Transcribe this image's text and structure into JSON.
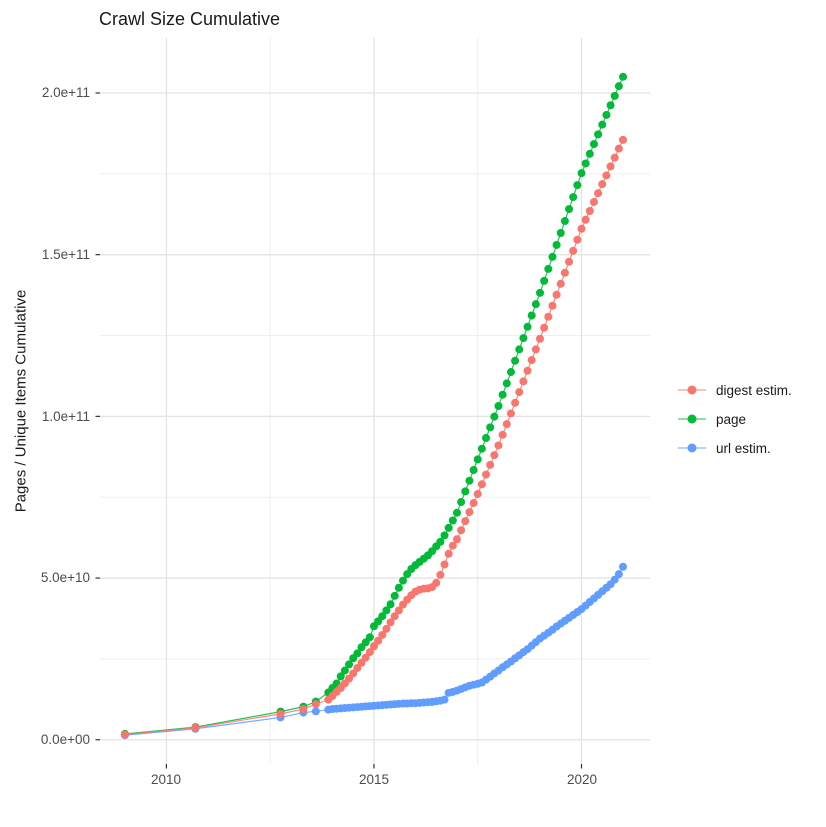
{
  "chart_data": {
    "type": "line",
    "title": "Crawl Size Cumulative",
    "ylabel": "Pages / Unique Items Cumulative",
    "xlabel": "",
    "grid": true,
    "legend_position": "right",
    "xlim": [
      2008.4,
      2021.65
    ],
    "ylim": [
      -7500000000.0,
      217000000000.0
    ],
    "x_ticks": {
      "values": [
        2010,
        2015,
        2020
      ],
      "labels": [
        "2010",
        "2015",
        "2020"
      ]
    },
    "x_minor_ticks": [
      2012.5,
      2017.5
    ],
    "y_ticks": {
      "values": [
        0,
        50000000000.0,
        100000000000.0,
        150000000000.0,
        200000000000.0
      ],
      "labels": [
        "0.0e+00",
        "5.0e+10",
        "1.0e+11",
        "1.5e+11",
        "2.0e+11"
      ]
    },
    "y_minor_ticks": [
      25000000000.0,
      75000000000.0,
      125000000000.0,
      175000000000.0
    ],
    "x": [
      2009.0,
      2010.7,
      2012.75,
      2013.3,
      2013.6,
      2013.9,
      2014.0,
      2014.1,
      2014.2,
      2014.3,
      2014.4,
      2014.5,
      2014.6,
      2014.7,
      2014.8,
      2014.9,
      2015.0,
      2015.1,
      2015.2,
      2015.3,
      2015.4,
      2015.5,
      2015.6,
      2015.7,
      2015.8,
      2015.9,
      2016.0,
      2016.1,
      2016.2,
      2016.3,
      2016.4,
      2016.5,
      2016.6,
      2016.7,
      2016.8,
      2016.9,
      2017.0,
      2017.1,
      2017.2,
      2017.3,
      2017.4,
      2017.5,
      2017.6,
      2017.7,
      2017.8,
      2017.9,
      2018.0,
      2018.1,
      2018.2,
      2018.3,
      2018.4,
      2018.5,
      2018.6,
      2018.7,
      2018.8,
      2018.9,
      2019.0,
      2019.1,
      2019.2,
      2019.3,
      2019.4,
      2019.5,
      2019.6,
      2019.7,
      2019.8,
      2019.9,
      2020.0,
      2020.1,
      2020.2,
      2020.3,
      2020.4,
      2020.5,
      2020.6,
      2020.7,
      2020.8,
      2020.9,
      2021.0
    ],
    "series": [
      {
        "name": "digest estim.",
        "color": "#F8766D",
        "y": [
          1600000000.0,
          3700000000.0,
          8000000000.0,
          9500000000.0,
          11000000000.0,
          12400000000.0,
          13500000000.0,
          14800000000.0,
          16000000000.0,
          17400000000.0,
          18900000000.0,
          20500000000.0,
          22200000000.0,
          23800000000.0,
          25400000000.0,
          27100000000.0,
          28900000000.0,
          30600000000.0,
          32400000000.0,
          34300000000.0,
          36300000000.0,
          38200000000.0,
          40000000000.0,
          41800000000.0,
          43300000000.0,
          44700000000.0,
          45800000000.0,
          46400000000.0,
          46700000000.0,
          46800000000.0,
          47200000000.0,
          48500000000.0,
          51000000000.0,
          54200000000.0,
          57500000000.0,
          60000000000.0,
          62000000000.0,
          64800000000.0,
          67600000000.0,
          70400000000.0,
          73200000000.0,
          76000000000.0,
          79000000000.0,
          82000000000.0,
          85000000000.0,
          88000000000.0,
          91000000000.0,
          94300000000.0,
          97600000000.0,
          100900000000.0,
          104200000000.0,
          107500000000.0,
          110800000000.0,
          114100000000.0,
          117400000000.0,
          120700000000.0,
          124000000000.0,
          127400000000.0,
          130800000000.0,
          134200000000.0,
          137600000000.0,
          141000000000.0,
          144400000000.0,
          147800000000.0,
          151200000000.0,
          154600000000.0,
          158000000000.0,
          160800000000.0,
          163500000000.0,
          166300000000.0,
          169000000000.0,
          171800000000.0,
          174500000000.0,
          177300000000.0,
          180000000000.0,
          182800000000.0,
          185500000000.0
        ]
      },
      {
        "name": "page",
        "color": "#00BA38",
        "y": [
          1800000000.0,
          3900000000.0,
          8700000000.0,
          10200000000.0,
          11800000000.0,
          14600000000.0,
          16000000000.0,
          17400000000.0,
          19600000000.0,
          21400000000.0,
          23300000000.0,
          25200000000.0,
          26700000000.0,
          28600000000.0,
          30100000000.0,
          31700000000.0,
          35100000000.0,
          36600000000.0,
          38200000000.0,
          40000000000.0,
          41900000000.0,
          44500000000.0,
          47000000000.0,
          49200000000.0,
          51200000000.0,
          52800000000.0,
          54000000000.0,
          55000000000.0,
          56000000000.0,
          57000000000.0,
          58300000000.0,
          59800000000.0,
          61200000000.0,
          63200000000.0,
          65500000000.0,
          67800000000.0,
          70200000000.0,
          73500000000.0,
          76800000000.0,
          80100000000.0,
          83400000000.0,
          86700000000.0,
          90000000000.0,
          93300000000.0,
          96600000000.0,
          99900000000.0,
          103200000000.0,
          106700000000.0,
          110200000000.0,
          113700000000.0,
          117200000000.0,
          120700000000.0,
          124200000000.0,
          127700000000.0,
          131200000000.0,
          134700000000.0,
          138200000000.0,
          141900000000.0,
          145600000000.0,
          149300000000.0,
          153000000000.0,
          156700000000.0,
          160400000000.0,
          164100000000.0,
          167800000000.0,
          171500000000.0,
          175200000000.0,
          178200000000.0,
          181200000000.0,
          184200000000.0,
          187200000000.0,
          190200000000.0,
          193200000000.0,
          196200000000.0,
          199100000000.0,
          202100000000.0,
          205000000000.0
        ]
      },
      {
        "name": "url estim.",
        "color": "#619CFF",
        "y": [
          1400000000.0,
          3400000000.0,
          6900000000.0,
          8400000000.0,
          8800000000.0,
          9300000000.0,
          9500000000.0,
          9600000000.0,
          9700000000.0,
          9800000000.0,
          9900000000.0,
          10000000000.0,
          10100000000.0,
          10200000000.0,
          10300000000.0,
          10400000000.0,
          10500000000.0,
          10600000000.0,
          10700000000.0,
          10800000000.0,
          10900000000.0,
          11000000000.0,
          11100000000.0,
          11200000000.0,
          11200000000.0,
          11300000000.0,
          11300000000.0,
          11400000000.0,
          11500000000.0,
          11600000000.0,
          11700000000.0,
          11900000000.0,
          12100000000.0,
          12400000000.0,
          14500000000.0,
          14800000000.0,
          15200000000.0,
          15700000000.0,
          16200000000.0,
          16700000000.0,
          17000000000.0,
          17300000000.0,
          17700000000.0,
          18600000000.0,
          19500000000.0,
          20500000000.0,
          21400000000.0,
          22400000000.0,
          23300000000.0,
          24200000000.0,
          25200000000.0,
          26100000000.0,
          27100000000.0,
          28000000000.0,
          29100000000.0,
          30200000000.0,
          31300000000.0,
          32200000000.0,
          33100000000.0,
          34000000000.0,
          35000000000.0,
          35900000000.0,
          36800000000.0,
          37700000000.0,
          38600000000.0,
          39500000000.0,
          40400000000.0,
          41500000000.0,
          42600000000.0,
          43700000000.0,
          44800000000.0,
          45900000000.0,
          47000000000.0,
          48100000000.0,
          49500000000.0,
          51200000000.0,
          53500000000.0
        ]
      }
    ],
    "colors": {
      "grid_major": "#E3E3E3",
      "grid_minor": "#EFEFEF",
      "tick": "#333333",
      "tick_label": "#4d4d4d",
      "text": "#1a1a1a",
      "background": "#ffffff"
    }
  }
}
